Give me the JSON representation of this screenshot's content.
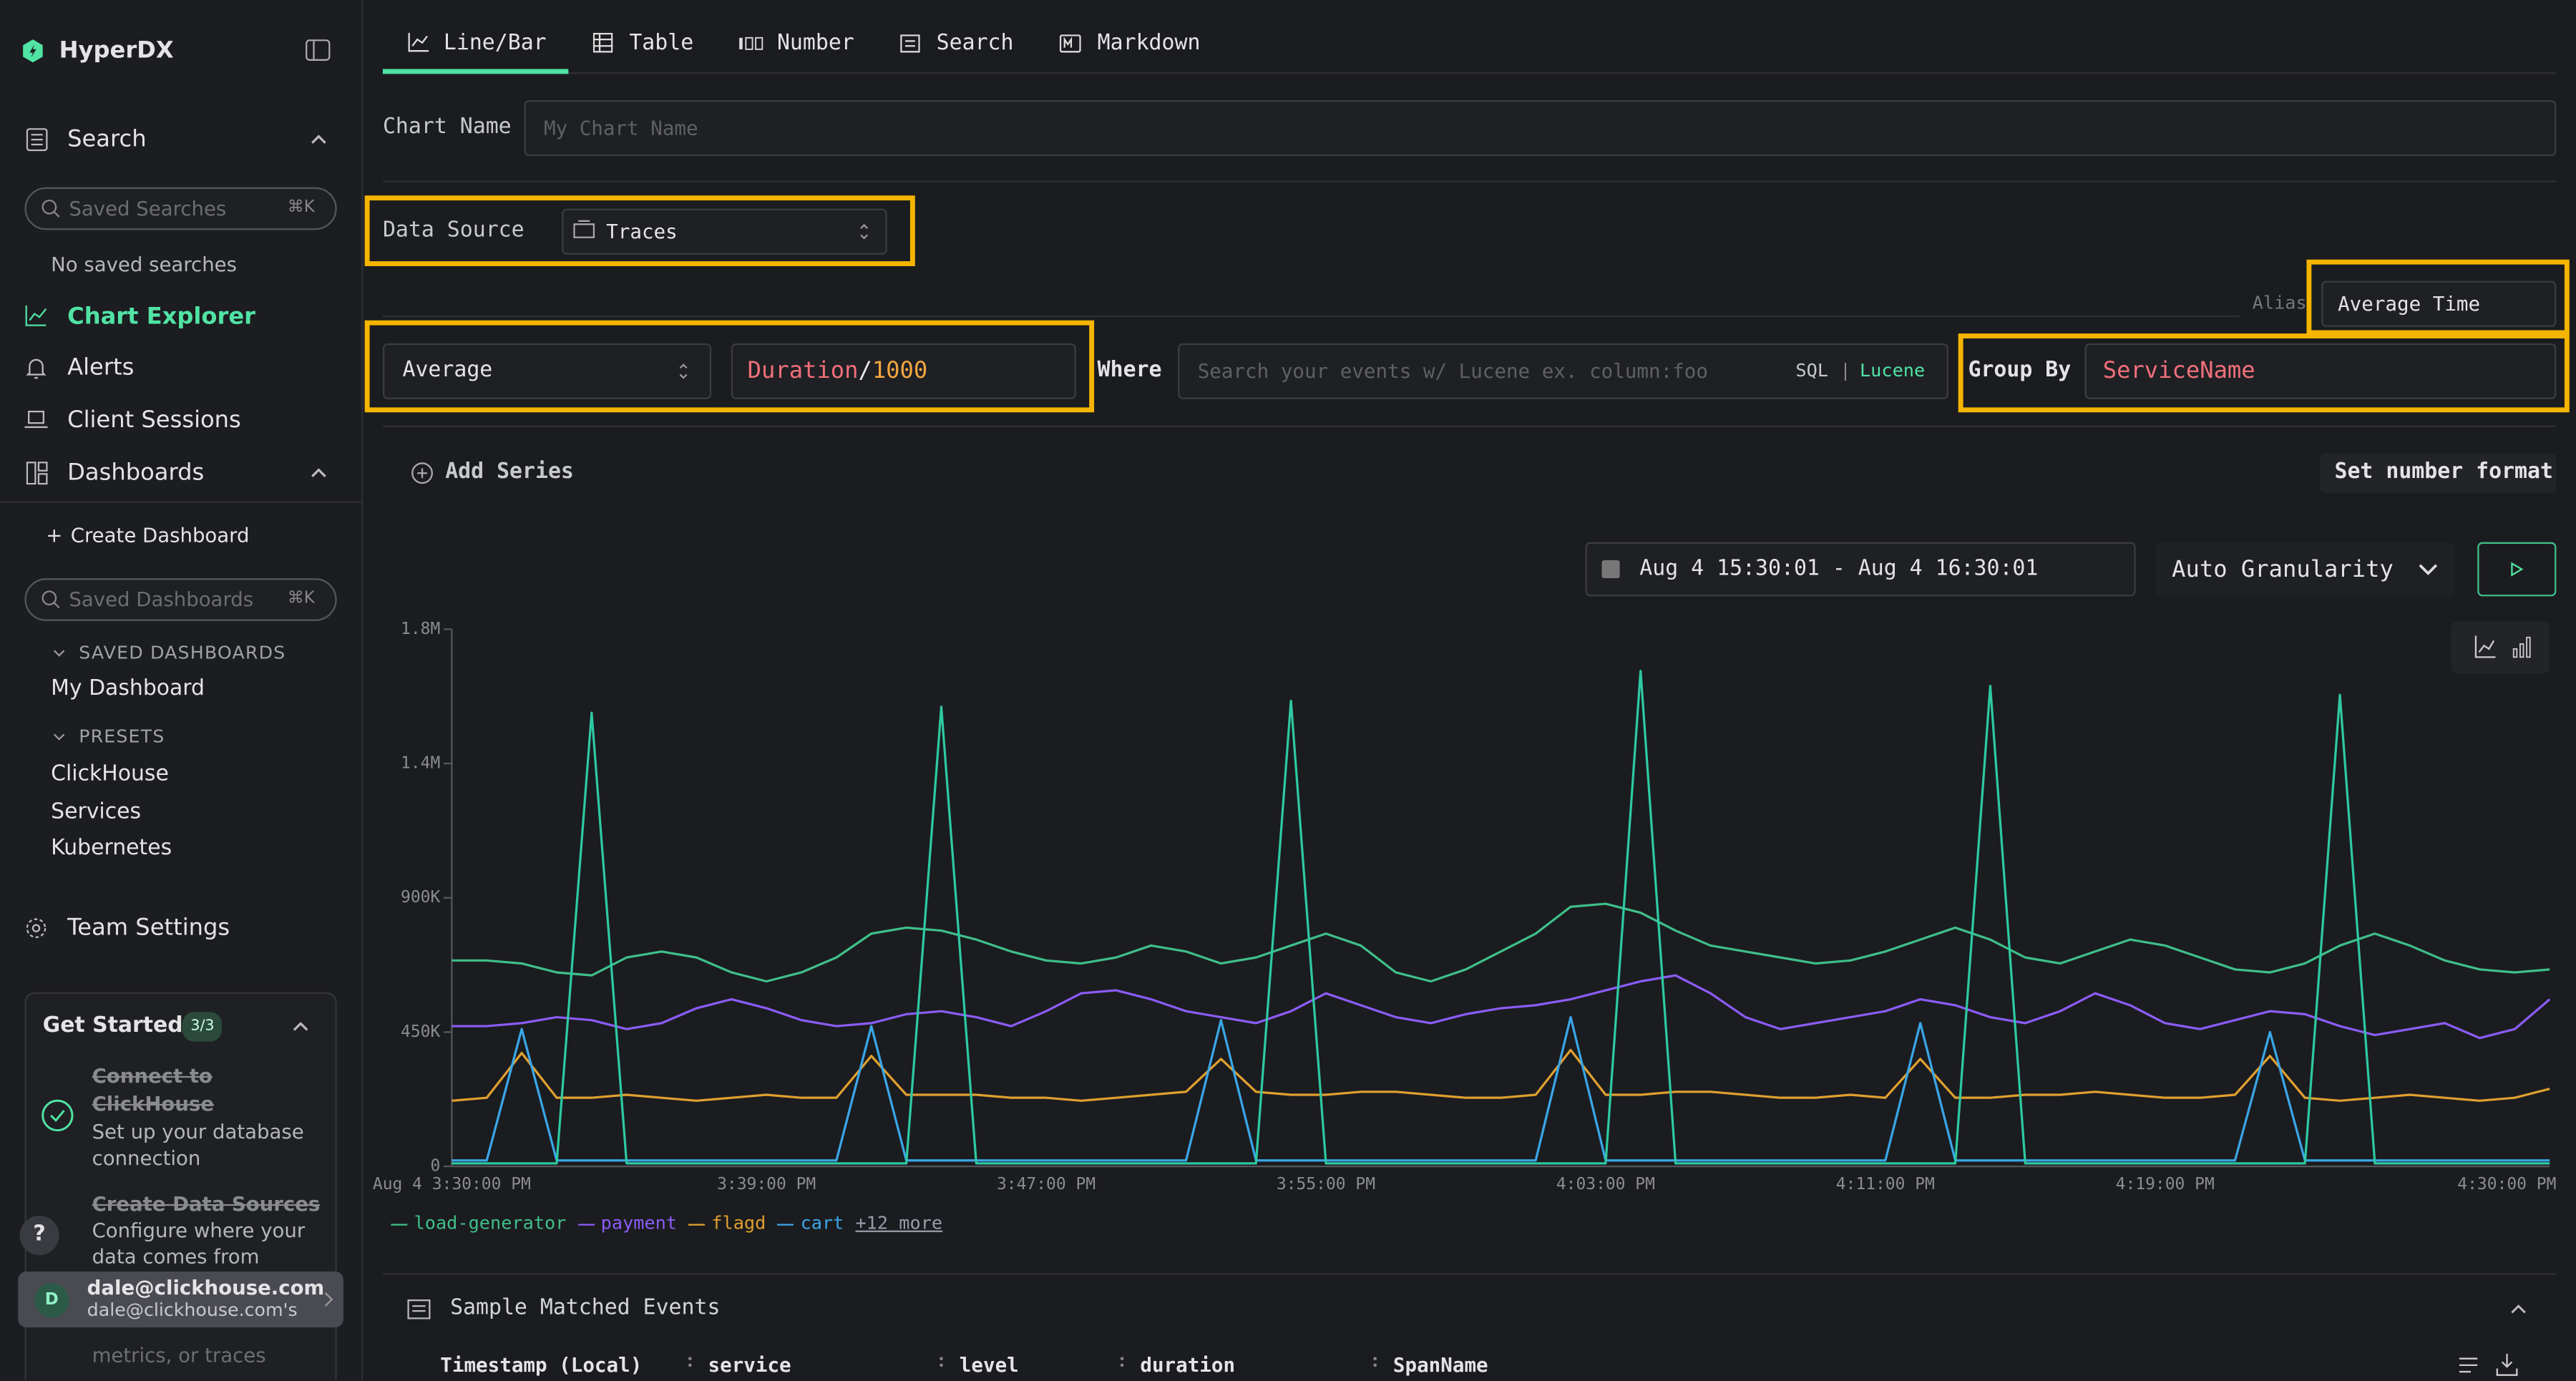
{
  "sidebar": {
    "brand": "HyperDX",
    "search": {
      "label": "Search",
      "placeholder": "Saved Searches",
      "shortcut": "⌘K",
      "empty": "No saved searches"
    },
    "nav": [
      "Chart Explorer",
      "Alerts",
      "Client Sessions"
    ],
    "dashboards": {
      "label": "Dashboards",
      "create_icon": "+",
      "create": "Create Dashboard",
      "placeholder": "Saved Dashboards",
      "shortcut": "⌘K",
      "saved_heading": "SAVED DASHBOARDS",
      "saved": [
        "My Dashboard"
      ],
      "presets_heading": "PRESETS",
      "presets": [
        "ClickHouse",
        "Services",
        "Kubernetes"
      ]
    },
    "team_settings": "Team Settings",
    "get_started": {
      "title": "Get Started",
      "progress": "3/3",
      "steps": [
        {
          "title": "Connect to ClickHouse",
          "description": "Set up your database connection"
        },
        {
          "title": "Create Data Sources",
          "description": "Configure where your data comes from"
        },
        {
          "description": "metrics, or traces"
        }
      ]
    },
    "help": "?",
    "user": {
      "initial": "D",
      "email": "dale@clickhouse.com",
      "team": "dale@clickhouse.com's"
    }
  },
  "editor": {
    "tabs": [
      "Line/Bar",
      "Table",
      "Number",
      "Search",
      "Markdown"
    ],
    "chart_name_label": "Chart Name",
    "chart_name_placeholder": "My Chart Name",
    "data_source_label": "Data Source",
    "data_source": "Traces",
    "alias_label": "Alias",
    "alias": "Average Time",
    "aggregation": "Average",
    "expression": [
      "Duration",
      "/",
      "1000"
    ],
    "where_label": "Where",
    "where_placeholder": "Search your events w/ Lucene ex. column:foo",
    "query_languages": [
      "SQL",
      "Lucene"
    ],
    "query_separator": "|",
    "group_by_label": "Group By",
    "group_by": "ServiceName",
    "add_series": "Add Series",
    "number_format": "Set number format",
    "time_range": "Aug 4 15:30:01 - Aug 4 16:30:01",
    "granularity": "Auto Granularity"
  },
  "chart_data": {
    "type": "line",
    "categories": [
      "Aug 4 3:30:00 PM",
      null,
      null,
      null,
      null,
      null,
      null,
      null,
      null,
      "3:39:00 PM",
      null,
      null,
      null,
      null,
      null,
      null,
      null,
      "3:47:00 PM",
      null,
      null,
      null,
      null,
      null,
      null,
      null,
      "3:55:00 PM",
      null,
      null,
      null,
      null,
      null,
      null,
      null,
      "4:03:00 PM",
      null,
      null,
      null,
      null,
      null,
      null,
      null,
      "4:11:00 PM",
      null,
      null,
      null,
      null,
      null,
      null,
      null,
      "4:19:00 PM",
      null,
      null,
      null,
      null,
      null,
      null,
      null,
      null,
      null,
      null,
      "4:30:00 PM"
    ],
    "ylim": [
      0,
      1800000
    ],
    "yticks": [
      0,
      {
        "value": 450000,
        "label": "450K"
      },
      {
        "value": 900000,
        "label": "900K"
      },
      {
        "value": 1350000,
        "label": "1.4M"
      },
      {
        "value": 1800000,
        "label": "1.8M"
      }
    ],
    "grid": false,
    "legend_more": "+12 more",
    "series": [
      {
        "name": "load-generator",
        "color": "#3fbf8a",
        "values": [
          690000,
          690000,
          680000,
          650000,
          640000,
          700000,
          720000,
          700000,
          650000,
          620000,
          650000,
          700000,
          780000,
          800000,
          790000,
          760000,
          720000,
          690000,
          680000,
          700000,
          740000,
          720000,
          680000,
          700000,
          740000,
          780000,
          740000,
          650000,
          620000,
          660000,
          720000,
          780000,
          870000,
          880000,
          850000,
          790000,
          740000,
          720000,
          700000,
          680000,
          690000,
          720000,
          760000,
          800000,
          760000,
          700000,
          680000,
          720000,
          760000,
          740000,
          700000,
          660000,
          650000,
          680000,
          740000,
          780000,
          740000,
          690000,
          660000,
          650000,
          660000
        ]
      },
      {
        "name": "payment",
        "color": "#8b5cf6",
        "values": [
          470000,
          470000,
          480000,
          500000,
          490000,
          460000,
          480000,
          530000,
          560000,
          530000,
          490000,
          470000,
          480000,
          510000,
          520000,
          500000,
          470000,
          520000,
          580000,
          590000,
          560000,
          520000,
          500000,
          480000,
          520000,
          580000,
          540000,
          500000,
          480000,
          510000,
          530000,
          540000,
          560000,
          590000,
          620000,
          640000,
          580000,
          500000,
          460000,
          480000,
          500000,
          520000,
          560000,
          540000,
          500000,
          480000,
          520000,
          580000,
          540000,
          480000,
          460000,
          490000,
          520000,
          510000,
          470000,
          440000,
          460000,
          480000,
          430000,
          460000,
          560000
        ]
      },
      {
        "name": "flagd",
        "color": "#e0a030",
        "values": [
          220000,
          230000,
          380000,
          230000,
          230000,
          240000,
          230000,
          220000,
          230000,
          240000,
          230000,
          230000,
          370000,
          240000,
          240000,
          240000,
          230000,
          230000,
          220000,
          230000,
          240000,
          250000,
          360000,
          250000,
          240000,
          240000,
          250000,
          250000,
          240000,
          230000,
          230000,
          240000,
          390000,
          240000,
          240000,
          250000,
          250000,
          240000,
          230000,
          230000,
          240000,
          230000,
          360000,
          230000,
          230000,
          240000,
          240000,
          250000,
          240000,
          230000,
          230000,
          240000,
          370000,
          230000,
          220000,
          230000,
          240000,
          230000,
          220000,
          230000,
          260000
        ]
      },
      {
        "name": "cart",
        "color": "#3aa6e8",
        "values": [
          20000,
          20000,
          460000,
          20000,
          20000,
          20000,
          20000,
          20000,
          20000,
          20000,
          20000,
          20000,
          470000,
          20000,
          20000,
          20000,
          20000,
          20000,
          20000,
          20000,
          20000,
          20000,
          490000,
          20000,
          20000,
          20000,
          20000,
          20000,
          20000,
          20000,
          20000,
          20000,
          500000,
          20000,
          20000,
          20000,
          20000,
          20000,
          20000,
          20000,
          20000,
          20000,
          480000,
          20000,
          20000,
          20000,
          20000,
          20000,
          20000,
          20000,
          20000,
          20000,
          450000,
          20000,
          20000,
          20000,
          20000,
          20000,
          20000,
          20000,
          20000
        ]
      },
      {
        "color": "#2ec9a2",
        "values": [
          10000,
          10000,
          10000,
          10000,
          1520000,
          10000,
          10000,
          10000,
          10000,
          10000,
          10000,
          10000,
          10000,
          10000,
          1540000,
          10000,
          10000,
          10000,
          10000,
          10000,
          10000,
          10000,
          10000,
          10000,
          1560000,
          10000,
          10000,
          10000,
          10000,
          10000,
          10000,
          10000,
          10000,
          10000,
          1660000,
          10000,
          10000,
          10000,
          10000,
          10000,
          10000,
          10000,
          10000,
          10000,
          1610000,
          10000,
          10000,
          10000,
          10000,
          10000,
          10000,
          10000,
          10000,
          10000,
          1580000,
          10000,
          10000,
          10000,
          10000,
          10000,
          10000
        ]
      }
    ]
  },
  "events": {
    "title": "Sample Matched Events",
    "columns": [
      "Timestamp (Local)",
      "service",
      "level",
      "duration",
      "SpanName"
    ]
  }
}
